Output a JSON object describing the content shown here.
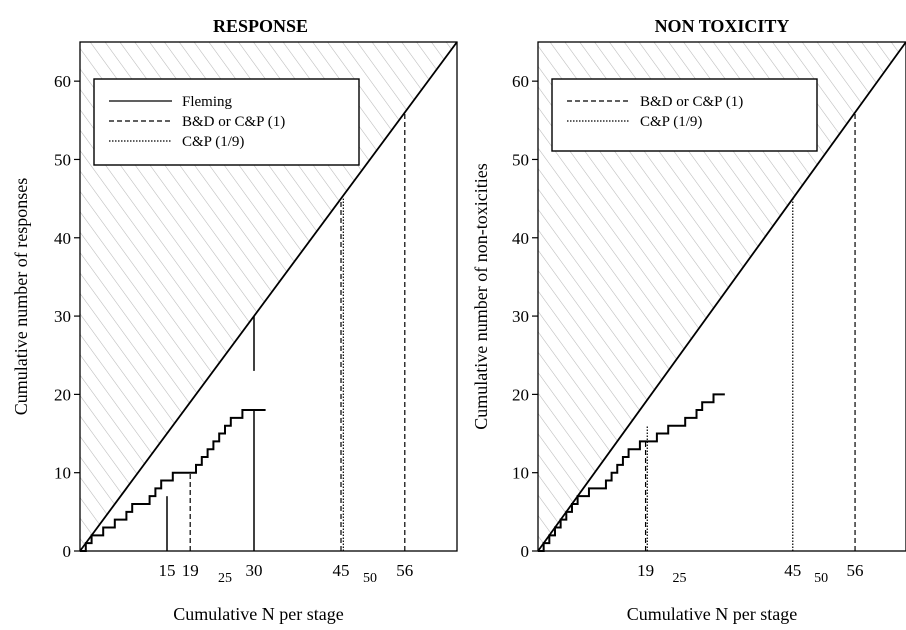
{
  "colors": {
    "ink": "#000000",
    "hatch": "#b8b8b8"
  },
  "xlabel": "Cumulative N per stage",
  "chart_data": [
    {
      "type": "line",
      "title": "RESPONSE",
      "xlabel": "Cumulative N per stage",
      "ylabel": "Cumulative number of responses",
      "xlim": [
        0,
        65
      ],
      "ylim": [
        0,
        65
      ],
      "yticks": [
        0,
        10,
        20,
        30,
        40,
        50,
        60
      ],
      "xtick_labels": [
        {
          "label": "15",
          "x": 15,
          "size": "large"
        },
        {
          "label": "19",
          "x": 19,
          "size": "large"
        },
        {
          "label": "25",
          "x": 25,
          "size": "small"
        },
        {
          "label": "30",
          "x": 30,
          "size": "large"
        },
        {
          "label": "45",
          "x": 45,
          "size": "large"
        },
        {
          "label": "50",
          "x": 50,
          "size": "small"
        },
        {
          "label": "56",
          "x": 56,
          "size": "large"
        }
      ],
      "diagonal": {
        "x": [
          0,
          65
        ],
        "y": [
          0,
          65
        ]
      },
      "legend": {
        "position": "top-left",
        "entries": [
          {
            "label": "Fleming",
            "style": "solid"
          },
          {
            "label": "B&D or C&P (1)",
            "style": "dashed"
          },
          {
            "label": "C&P (1/9)",
            "style": "dotted"
          }
        ]
      },
      "series": [
        {
          "style": "step",
          "x": [
            0,
            1,
            2,
            3,
            4,
            5,
            6,
            7,
            8,
            9,
            10,
            11,
            12,
            13,
            14,
            15,
            16,
            17,
            18,
            19,
            20,
            21,
            22,
            23,
            24,
            25,
            26,
            27,
            28,
            29,
            30,
            31,
            32
          ],
          "y": [
            0,
            1,
            2,
            2,
            3,
            3,
            4,
            4,
            5,
            6,
            6,
            6,
            7,
            8,
            9,
            9,
            10,
            10,
            10,
            10,
            11,
            12,
            13,
            14,
            15,
            16,
            17,
            17,
            18,
            18,
            18,
            18,
            18
          ]
        },
        {
          "style": "solid",
          "name": "Fleming",
          "x": [
            15,
            15
          ],
          "y": [
            0,
            7
          ]
        },
        {
          "style": "solid",
          "name": "Fleming",
          "x": [
            30,
            30
          ],
          "y": [
            0,
            18
          ]
        },
        {
          "style": "solid",
          "name": "Fleming",
          "x": [
            30,
            30
          ],
          "y": [
            23,
            30
          ]
        },
        {
          "style": "dashed",
          "name": "B&D or C&P (1)",
          "x": [
            19,
            19
          ],
          "y": [
            0,
            10
          ]
        },
        {
          "style": "dashed",
          "name": "B&D or C&P (1)",
          "x": [
            45,
            45
          ],
          "y": [
            0,
            45
          ]
        },
        {
          "style": "dashed",
          "name": "B&D or C&P (1)",
          "x": [
            56,
            56
          ],
          "y": [
            0,
            56
          ]
        },
        {
          "style": "dotted",
          "name": "C&P (1/9)",
          "x": [
            45.4,
            45.4
          ],
          "y": [
            0,
            45
          ]
        }
      ]
    },
    {
      "type": "line",
      "title": "NON TOXICITY",
      "xlabel": "Cumulative N per stage",
      "ylabel": "Cumulative number of non-toxicities",
      "xlim": [
        0,
        65
      ],
      "ylim": [
        0,
        65
      ],
      "yticks": [
        0,
        10,
        20,
        30,
        40,
        50,
        60
      ],
      "xtick_labels": [
        {
          "label": "19",
          "x": 19,
          "size": "large"
        },
        {
          "label": "25",
          "x": 25,
          "size": "small"
        },
        {
          "label": "45",
          "x": 45,
          "size": "large"
        },
        {
          "label": "50",
          "x": 50,
          "size": "small"
        },
        {
          "label": "56",
          "x": 56,
          "size": "large"
        }
      ],
      "diagonal": {
        "x": [
          0,
          65
        ],
        "y": [
          0,
          65
        ]
      },
      "legend": {
        "position": "top-left",
        "entries": [
          {
            "label": "B&D or C&P (1)",
            "style": "dashed"
          },
          {
            "label": "C&P (1/9)",
            "style": "dotted"
          }
        ]
      },
      "series": [
        {
          "style": "step",
          "x": [
            0,
            1,
            2,
            3,
            4,
            5,
            6,
            7,
            8,
            9,
            10,
            11,
            12,
            13,
            14,
            15,
            16,
            17,
            18,
            19,
            20,
            21,
            22,
            23,
            24,
            25,
            26,
            27,
            28,
            29,
            30,
            31,
            32,
            33
          ],
          "y": [
            0,
            1,
            2,
            3,
            4,
            5,
            6,
            7,
            7,
            8,
            8,
            8,
            9,
            10,
            11,
            12,
            13,
            13,
            14,
            14,
            14,
            15,
            15,
            16,
            16,
            16,
            17,
            17,
            18,
            19,
            19,
            20,
            20,
            20
          ]
        },
        {
          "style": "dashed",
          "name": "B&D or C&P (1)",
          "x": [
            19,
            19
          ],
          "y": [
            0,
            14
          ]
        },
        {
          "style": "dashed",
          "name": "B&D or C&P (1)",
          "x": [
            56,
            56
          ],
          "y": [
            0,
            56
          ]
        },
        {
          "style": "dotted",
          "name": "C&P (1/9)",
          "x": [
            19.3,
            19.3
          ],
          "y": [
            0,
            16
          ]
        },
        {
          "style": "dotted",
          "name": "C&P (1/9)",
          "x": [
            45,
            45
          ],
          "y": [
            0,
            45
          ]
        }
      ]
    }
  ]
}
